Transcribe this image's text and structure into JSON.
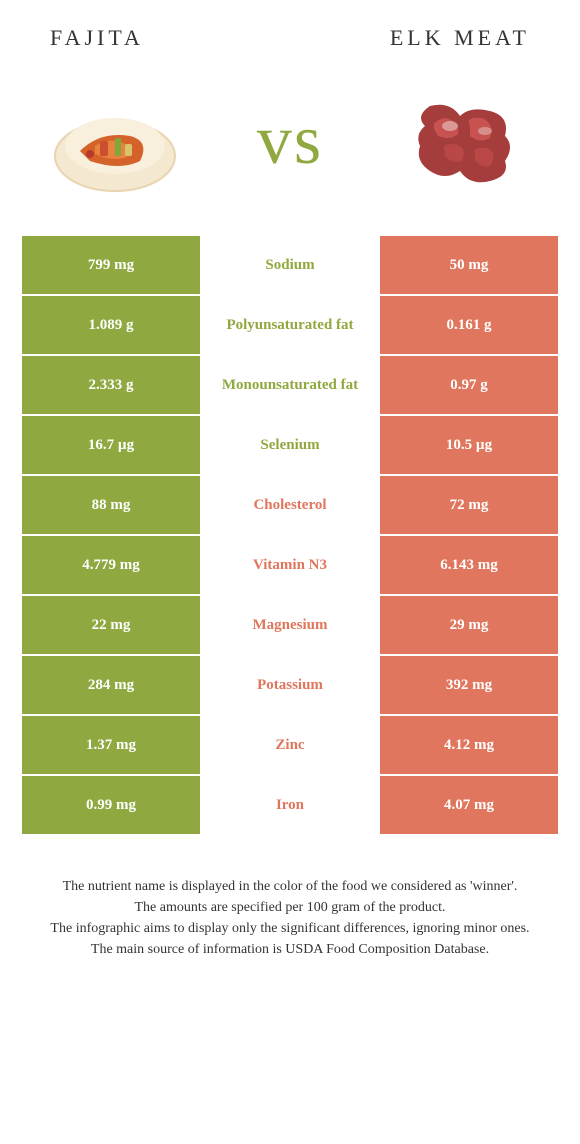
{
  "colors": {
    "left_bg": "#8fa83f",
    "right_bg": "#e0765d",
    "left_text": "#8fa83f",
    "right_text": "#e0765d",
    "vs_color": "#8fa83f"
  },
  "header": {
    "left_title": "FAJITA",
    "right_title": "ELK MEAT",
    "vs": "vs"
  },
  "rows": [
    {
      "left": "799 mg",
      "label": "Sodium",
      "right": "50 mg",
      "winner": "left"
    },
    {
      "left": "1.089 g",
      "label": "Polyunsaturated fat",
      "right": "0.161 g",
      "winner": "left"
    },
    {
      "left": "2.333 g",
      "label": "Monounsaturated fat",
      "right": "0.97 g",
      "winner": "left"
    },
    {
      "left": "16.7 µg",
      "label": "Selenium",
      "right": "10.5 µg",
      "winner": "left"
    },
    {
      "left": "88 mg",
      "label": "Cholesterol",
      "right": "72 mg",
      "winner": "right"
    },
    {
      "left": "4.779 mg",
      "label": "Vitamin N3",
      "right": "6.143 mg",
      "winner": "right"
    },
    {
      "left": "22 mg",
      "label": "Magnesium",
      "right": "29 mg",
      "winner": "right"
    },
    {
      "left": "284 mg",
      "label": "Potassium",
      "right": "392 mg",
      "winner": "right"
    },
    {
      "left": "1.37 mg",
      "label": "Zinc",
      "right": "4.12 mg",
      "winner": "right"
    },
    {
      "left": "0.99 mg",
      "label": "Iron",
      "right": "4.07 mg",
      "winner": "right"
    }
  ],
  "footnotes": [
    "The nutrient name is displayed in the color of the food we considered as 'winner'.",
    "The amounts are specified per 100 gram of the product.",
    "The infographic aims to display only the significant differences, ignoring minor ones.",
    "The main source of information is USDA Food Composition Database."
  ]
}
